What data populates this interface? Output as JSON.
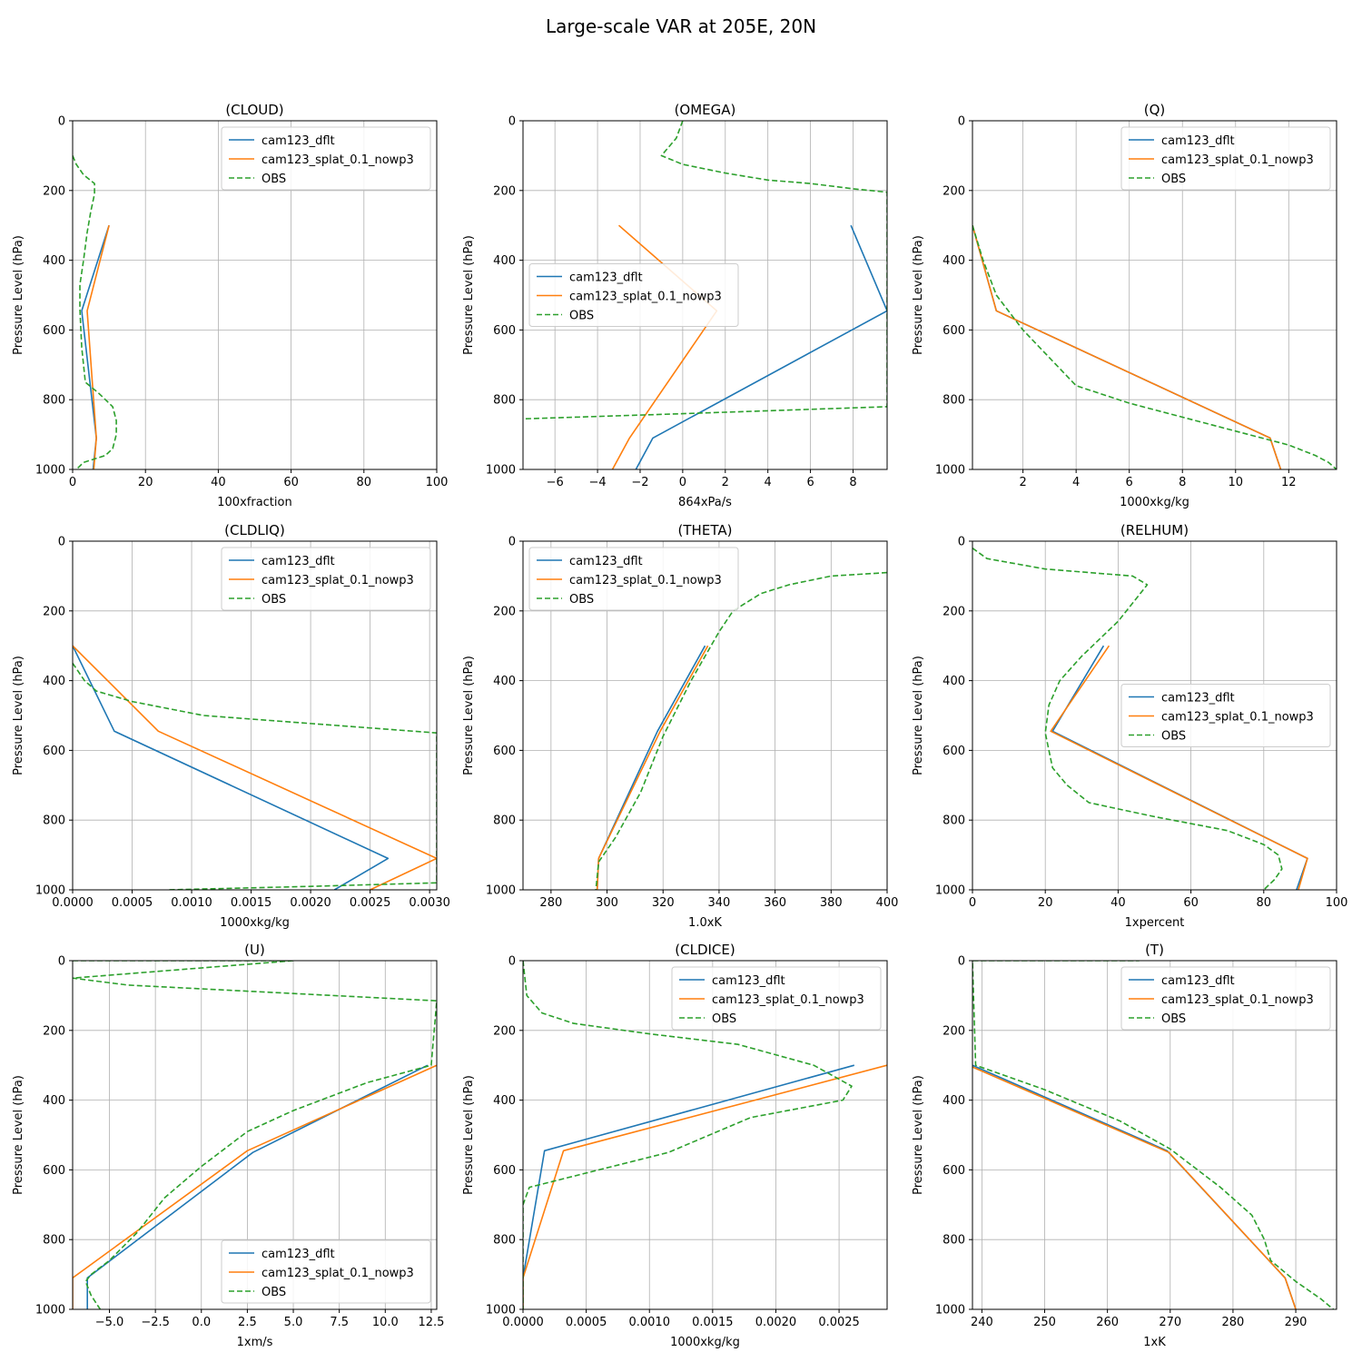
{
  "figure_title": "Large-scale VAR at 205E, 20N",
  "series_styles": {
    "cam123_dflt": {
      "color": "#1f77b4",
      "dash": "solid"
    },
    "cam123_splat_0.1_nowp3": {
      "color": "#ff7f0e",
      "dash": "solid"
    },
    "OBS": {
      "color": "#2ca02c",
      "dash": "dashed"
    }
  },
  "chart_data": [
    {
      "type": "line",
      "title": "(CLOUD)",
      "xlabel": "100xfraction",
      "ylabel": "Pressure Level (hPa)",
      "xlim": [
        0,
        100
      ],
      "ylim": [
        1000,
        0
      ],
      "grid": true,
      "legend": "top-right",
      "xticks": [
        0,
        20,
        40,
        60,
        80,
        100
      ],
      "xtick_labels": [
        "0",
        "20",
        "40",
        "60",
        "80",
        "100"
      ],
      "yticks": [
        0,
        200,
        400,
        600,
        800,
        1000
      ],
      "ytick_labels": [
        "0",
        "200",
        "400",
        "600",
        "800",
        "1000"
      ],
      "series": [
        {
          "name": "cam123_dflt",
          "x": [
            10,
            2.5,
            6.5,
            5.6
          ],
          "y": [
            300,
            545,
            910,
            1000
          ]
        },
        {
          "name": "cam123_splat_0.1_nowp3",
          "x": [
            10,
            4,
            6.5,
            5.8
          ],
          "y": [
            300,
            545,
            910,
            1000
          ]
        },
        {
          "name": "OBS",
          "x": [
            0,
            1,
            3,
            6,
            6,
            5,
            4,
            3,
            2,
            2,
            2.5,
            3.5,
            7,
            11,
            12,
            12,
            11,
            9,
            3,
            1
          ],
          "y": [
            100,
            125,
            155,
            180,
            210,
            260,
            320,
            400,
            470,
            540,
            650,
            750,
            780,
            820,
            860,
            900,
            940,
            960,
            980,
            1000
          ]
        }
      ]
    },
    {
      "type": "line",
      "title": "(OMEGA)",
      "xlabel": "864xPa/s",
      "ylabel": "Pressure Level (hPa)",
      "xlim": [
        -7.5,
        9.6
      ],
      "ylim": [
        1000,
        0
      ],
      "grid": true,
      "legend": "center-left",
      "xticks": [
        -6,
        -4,
        -2,
        0,
        2,
        4,
        6,
        8
      ],
      "xtick_labels": [
        "−6",
        "−4",
        "−2",
        "0",
        "2",
        "4",
        "6",
        "8"
      ],
      "yticks": [
        0,
        200,
        400,
        600,
        800,
        1000
      ],
      "ytick_labels": [
        "0",
        "200",
        "400",
        "600",
        "800",
        "1000"
      ],
      "series": [
        {
          "name": "cam123_dflt",
          "x": [
            7.9,
            9.6,
            -1.4,
            -2.2
          ],
          "y": [
            300,
            545,
            910,
            1000
          ]
        },
        {
          "name": "cam123_splat_0.1_nowp3",
          "x": [
            -3,
            1.6,
            -2.5,
            -3.3
          ],
          "y": [
            300,
            545,
            910,
            1000
          ]
        },
        {
          "name": "OBS",
          "x": [
            0,
            -0.3,
            -1,
            0,
            2,
            4,
            6,
            8,
            9.6,
            9.6,
            0,
            -7.5
          ],
          "y": [
            0,
            50,
            100,
            125,
            150,
            170,
            180,
            195,
            205,
            820,
            840,
            855
          ]
        }
      ]
    },
    {
      "type": "line",
      "title": "(Q)",
      "xlabel": "1000xkg/kg",
      "ylabel": "Pressure Level (hPa)",
      "xlim": [
        0.1,
        13.8
      ],
      "ylim": [
        1000,
        0
      ],
      "grid": true,
      "legend": "top-right",
      "xticks": [
        2,
        4,
        6,
        8,
        10,
        12
      ],
      "xtick_labels": [
        "2",
        "4",
        "6",
        "8",
        "10",
        "12"
      ],
      "yticks": [
        0,
        200,
        400,
        600,
        800,
        1000
      ],
      "ytick_labels": [
        "0",
        "200",
        "400",
        "600",
        "800",
        "1000"
      ],
      "series": [
        {
          "name": "cam123_dflt",
          "x": [
            0.1,
            1,
            11.3,
            11.7
          ],
          "y": [
            300,
            545,
            910,
            1000
          ]
        },
        {
          "name": "cam123_splat_0.1_nowp3",
          "x": [
            0.1,
            1,
            11.3,
            11.7
          ],
          "y": [
            300,
            545,
            910,
            1000
          ]
        },
        {
          "name": "OBS",
          "x": [
            0.1,
            0.5,
            1,
            2,
            3,
            4,
            6,
            8,
            10,
            12,
            13,
            13.5,
            13.8
          ],
          "y": [
            300,
            400,
            500,
            600,
            680,
            760,
            810,
            850,
            890,
            930,
            960,
            980,
            1000
          ]
        }
      ]
    },
    {
      "type": "line",
      "title": "(CLDLIQ)",
      "xlabel": "1000xkg/kg",
      "ylabel": "Pressure Level (hPa)",
      "xlim": [
        0,
        0.00306
      ],
      "ylim": [
        1000,
        0
      ],
      "grid": true,
      "legend": "top-right",
      "xticks": [
        0,
        0.0005,
        0.001,
        0.0015,
        0.002,
        0.0025,
        0.003
      ],
      "xtick_labels": [
        "0.0000",
        "0.0005",
        "0.0010",
        "0.0015",
        "0.0020",
        "0.0025",
        "0.0030"
      ],
      "yticks": [
        0,
        200,
        400,
        600,
        800,
        1000
      ],
      "ytick_labels": [
        "0",
        "200",
        "400",
        "600",
        "800",
        "1000"
      ],
      "series": [
        {
          "name": "cam123_dflt",
          "x": [
            0,
            0.00035,
            0.00265,
            0.0022
          ],
          "y": [
            300,
            545,
            910,
            1000
          ]
        },
        {
          "name": "cam123_splat_0.1_nowp3",
          "x": [
            0,
            0.00072,
            0.00306,
            0.0025
          ],
          "y": [
            300,
            545,
            910,
            1000
          ]
        },
        {
          "name": "OBS",
          "x": [
            0,
            0.0001,
            0.0002,
            0.0005,
            0.0011,
            0.00306,
            0.00306,
            0.002,
            0.0008
          ],
          "y": [
            350,
            400,
            430,
            460,
            500,
            550,
            980,
            990,
            1000
          ]
        }
      ]
    },
    {
      "type": "line",
      "title": "(THETA)",
      "xlabel": "1.0xK",
      "ylabel": "Pressure Level (hPa)",
      "xlim": [
        270,
        400
      ],
      "ylim": [
        1000,
        0
      ],
      "grid": true,
      "legend": "top-left",
      "xticks": [
        280,
        300,
        320,
        340,
        360,
        380,
        400
      ],
      "xtick_labels": [
        "280",
        "300",
        "320",
        "340",
        "360",
        "380",
        "400"
      ],
      "yticks": [
        0,
        200,
        400,
        600,
        800,
        1000
      ],
      "ytick_labels": [
        "0",
        "200",
        "400",
        "600",
        "800",
        "1000"
      ],
      "series": [
        {
          "name": "cam123_dflt",
          "x": [
            335,
            318,
            297,
            296.5
          ],
          "y": [
            300,
            545,
            910,
            1000
          ]
        },
        {
          "name": "cam123_splat_0.1_nowp3",
          "x": [
            336,
            319,
            297,
            296.5
          ],
          "y": [
            300,
            545,
            910,
            1000
          ]
        },
        {
          "name": "OBS",
          "x": [
            400,
            380,
            365,
            355,
            345,
            340,
            330,
            320,
            312,
            303,
            297,
            296
          ],
          "y": [
            90,
            100,
            125,
            150,
            200,
            260,
            400,
            560,
            720,
            850,
            920,
            1000
          ]
        }
      ]
    },
    {
      "type": "line",
      "title": "(RELHUM)",
      "xlabel": "1xpercent",
      "ylabel": "Pressure Level (hPa)",
      "xlim": [
        0,
        100
      ],
      "ylim": [
        1000,
        0
      ],
      "grid": true,
      "legend": "center-right",
      "xticks": [
        0,
        20,
        40,
        60,
        80,
        100
      ],
      "xtick_labels": [
        "0",
        "20",
        "40",
        "60",
        "80",
        "100"
      ],
      "yticks": [
        0,
        200,
        400,
        600,
        800,
        1000
      ],
      "ytick_labels": [
        "0",
        "200",
        "400",
        "600",
        "800",
        "1000"
      ],
      "series": [
        {
          "name": "cam123_dflt",
          "x": [
            36,
            22,
            92,
            89
          ],
          "y": [
            300,
            545,
            910,
            1000
          ]
        },
        {
          "name": "cam123_splat_0.1_nowp3",
          "x": [
            37.5,
            21.5,
            92,
            89.5
          ],
          "y": [
            300,
            545,
            910,
            1000
          ]
        },
        {
          "name": "OBS",
          "x": [
            0,
            4,
            20,
            44,
            48,
            40,
            30,
            24,
            21,
            20,
            22,
            26,
            32,
            50,
            70,
            80,
            84,
            85,
            83,
            80
          ],
          "y": [
            20,
            50,
            80,
            100,
            125,
            230,
            330,
            400,
            470,
            550,
            650,
            700,
            750,
            790,
            830,
            870,
            900,
            940,
            970,
            1000
          ]
        }
      ]
    },
    {
      "type": "line",
      "title": "(U)",
      "xlabel": "1xm/s",
      "ylabel": "Pressure Level (hPa)",
      "xlim": [
        -7,
        12.8
      ],
      "ylim": [
        1000,
        0
      ],
      "grid": true,
      "legend": "bottom-right",
      "xticks": [
        -5,
        -2.5,
        0,
        2.5,
        5,
        7.5,
        10,
        12.5
      ],
      "xtick_labels": [
        "−5.0",
        "−2.5",
        "0.0",
        "2.5",
        "5.0",
        "7.5",
        "10.0",
        "12.5"
      ],
      "yticks": [
        0,
        200,
        400,
        600,
        800,
        1000
      ],
      "ytick_labels": [
        "0",
        "200",
        "400",
        "600",
        "800",
        "1000"
      ],
      "series": [
        {
          "name": "cam123_dflt",
          "x": [
            12.3,
            2.8,
            -6.2,
            -6.2
          ],
          "y": [
            300,
            550,
            910,
            1000
          ]
        },
        {
          "name": "cam123_splat_0.1_nowp3",
          "x": [
            12.8,
            2.5,
            -7,
            -7
          ],
          "y": [
            300,
            545,
            910,
            1000
          ]
        },
        {
          "name": "OBS",
          "x": [
            -7,
            5,
            -7,
            -4,
            12.8,
            12.5,
            9,
            7.5,
            5,
            2.5,
            0,
            -2,
            -3.5,
            -5,
            -6,
            -6.3,
            -6,
            -5.5
          ],
          "y": [
            0,
            0,
            50,
            70,
            115,
            300,
            350,
            380,
            430,
            490,
            590,
            680,
            780,
            860,
            900,
            920,
            960,
            1000
          ]
        }
      ]
    },
    {
      "type": "line",
      "title": "(CLDICE)",
      "xlabel": "1000xkg/kg",
      "ylabel": "Pressure Level (hPa)",
      "xlim": [
        0,
        0.00288
      ],
      "ylim": [
        1000,
        0
      ],
      "grid": true,
      "legend": "top-right",
      "xticks": [
        0,
        0.0005,
        0.001,
        0.0015,
        0.002,
        0.0025
      ],
      "xtick_labels": [
        "0.0000",
        "0.0005",
        "0.0010",
        "0.0015",
        "0.0020",
        "0.0025"
      ],
      "yticks": [
        0,
        200,
        400,
        600,
        800,
        1000
      ],
      "ytick_labels": [
        "0",
        "200",
        "400",
        "600",
        "800",
        "1000"
      ],
      "series": [
        {
          "name": "cam123_dflt",
          "x": [
            0.00262,
            0.00017,
            0,
            0
          ],
          "y": [
            300,
            545,
            910,
            1000
          ]
        },
        {
          "name": "cam123_splat_0.1_nowp3",
          "x": [
            0.00288,
            0.00032,
            0,
            0
          ],
          "y": [
            300,
            545,
            910,
            1000
          ]
        },
        {
          "name": "OBS",
          "x": [
            0,
            3e-05,
            0.00015,
            0.0004,
            0.001,
            0.0017,
            0.0023,
            0.0026,
            0.00253,
            0.0018,
            0.00115,
            0.0006,
            5e-05,
            0,
            0
          ],
          "y": [
            0,
            100,
            150,
            180,
            210,
            240,
            300,
            360,
            400,
            450,
            550,
            600,
            650,
            700,
            1000
          ]
        }
      ]
    },
    {
      "type": "line",
      "title": "(T)",
      "xlabel": "1xK",
      "ylabel": "Pressure Level (hPa)",
      "xlim": [
        238.5,
        296.5
      ],
      "ylim": [
        1000,
        0
      ],
      "grid": true,
      "legend": "top-right",
      "xticks": [
        240,
        250,
        260,
        270,
        280,
        290
      ],
      "xtick_labels": [
        "240",
        "250",
        "260",
        "270",
        "280",
        "290"
      ],
      "yticks": [
        0,
        200,
        400,
        600,
        800,
        1000
      ],
      "ytick_labels": [
        "0",
        "200",
        "400",
        "600",
        "800",
        "1000"
      ],
      "series": [
        {
          "name": "cam123_dflt",
          "x": [
            238.5,
            269.5,
            288.3,
            290
          ],
          "y": [
            300,
            545,
            910,
            1000
          ]
        },
        {
          "name": "cam123_splat_0.1_nowp3",
          "x": [
            238.5,
            269.8,
            288.3,
            290
          ],
          "y": [
            305,
            550,
            910,
            1000
          ]
        },
        {
          "name": "OBS",
          "x": [
            238.5,
            265,
            238.5,
            239,
            250,
            262,
            270,
            278,
            283,
            285,
            286,
            290,
            294,
            296
          ],
          "y": [
            0,
            0,
            0,
            300,
            370,
            460,
            540,
            650,
            730,
            800,
            860,
            920,
            970,
            1000
          ]
        }
      ]
    }
  ]
}
